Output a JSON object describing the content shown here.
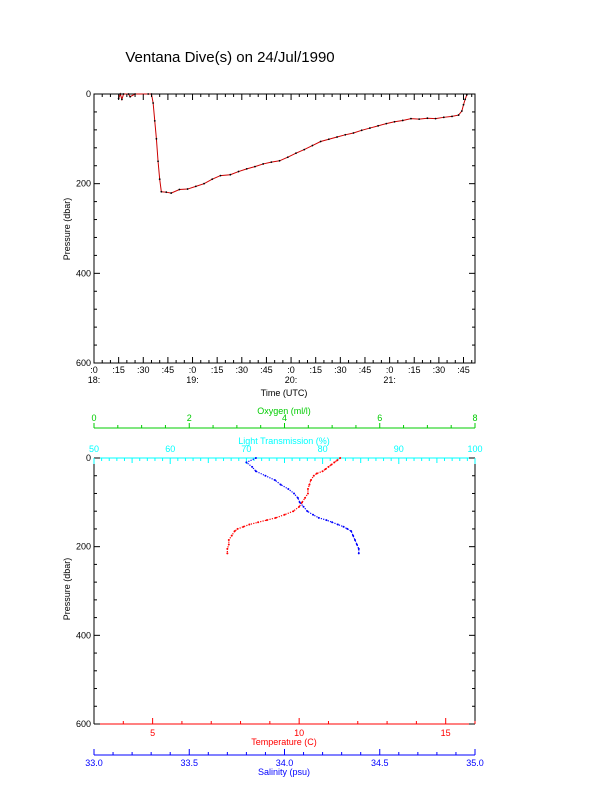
{
  "title": "Ventana Dive(s) on 24/Jul/1990",
  "colors": {
    "axis": "#000000",
    "trace": "#cc0000",
    "trace_dots": "#000000",
    "temperature": "#ff0000",
    "salinity": "#0000ff",
    "oxygen": "#00cc00",
    "light": "#00ffff"
  },
  "chart_data": [
    {
      "type": "line",
      "name": "pressure-vs-time",
      "xlabel": "Time (UTC)",
      "ylabel": "Pressure (dbar)",
      "ylim": [
        600,
        0
      ],
      "y_ticks": [
        "0",
        "200",
        "400",
        "600"
      ],
      "x_ticks": [
        {
          "t": 0,
          "label": ":0",
          "hour": "18:"
        },
        {
          "t": 15,
          "label": ":15"
        },
        {
          "t": 30,
          "label": ":30"
        },
        {
          "t": 45,
          "label": ":45"
        },
        {
          "t": 60,
          "label": ":0",
          "hour": "19:"
        },
        {
          "t": 75,
          "label": ":15"
        },
        {
          "t": 90,
          "label": ":30"
        },
        {
          "t": 105,
          "label": ":45"
        },
        {
          "t": 120,
          "label": ":0",
          "hour": "20:"
        },
        {
          "t": 135,
          "label": ":15"
        },
        {
          "t": 150,
          "label": ":30"
        },
        {
          "t": 165,
          "label": ":45"
        },
        {
          "t": 180,
          "label": ":0",
          "hour": "21:"
        },
        {
          "t": 195,
          "label": ":15"
        },
        {
          "t": 210,
          "label": ":30"
        },
        {
          "t": 225,
          "label": ":45"
        }
      ],
      "xlim": [
        0,
        232
      ],
      "points": [
        [
          15,
          10
        ],
        [
          16,
          0
        ],
        [
          17,
          12
        ],
        [
          18,
          0
        ],
        [
          21,
          0
        ],
        [
          22,
          6
        ],
        [
          25,
          0
        ],
        [
          33,
          0
        ],
        [
          35,
          0
        ],
        [
          36,
          20
        ],
        [
          37,
          60
        ],
        [
          38,
          100
        ],
        [
          39,
          150
        ],
        [
          40,
          190
        ],
        [
          41,
          218
        ],
        [
          44,
          219
        ],
        [
          47,
          221
        ],
        [
          52,
          213
        ],
        [
          57,
          212
        ],
        [
          62,
          206
        ],
        [
          67,
          200
        ],
        [
          72,
          190
        ],
        [
          77,
          182
        ],
        [
          83,
          180
        ],
        [
          88,
          173
        ],
        [
          93,
          167
        ],
        [
          98,
          162
        ],
        [
          103,
          156
        ],
        [
          108,
          152
        ],
        [
          113,
          149
        ],
        [
          118,
          141
        ],
        [
          123,
          132
        ],
        [
          128,
          124
        ],
        [
          133,
          115
        ],
        [
          138,
          106
        ],
        [
          143,
          101
        ],
        [
          148,
          96
        ],
        [
          153,
          91
        ],
        [
          158,
          87
        ],
        [
          163,
          81
        ],
        [
          168,
          76
        ],
        [
          173,
          71
        ],
        [
          178,
          66
        ],
        [
          183,
          62
        ],
        [
          188,
          59
        ],
        [
          193,
          55
        ],
        [
          198,
          56
        ],
        [
          203,
          54
        ],
        [
          208,
          55
        ],
        [
          213,
          52
        ],
        [
          218,
          50
        ],
        [
          222,
          47
        ],
        [
          224,
          38
        ],
        [
          225,
          24
        ],
        [
          226,
          12
        ],
        [
          227,
          2
        ]
      ]
    },
    {
      "type": "scatter",
      "name": "profiles",
      "ylabel": "Pressure (dbar)",
      "ylim": [
        600,
        0
      ],
      "y_ticks": [
        "0",
        "200",
        "400",
        "600"
      ],
      "axes": {
        "oxygen": {
          "label": "Oxygen (ml/l)",
          "min": 0,
          "max": 8,
          "ticks": [
            "0",
            "2",
            "4",
            "6",
            "8"
          ]
        },
        "light": {
          "label": "Light Transmission (%)",
          "min": 50,
          "max": 100,
          "ticks": [
            "50",
            "60",
            "70",
            "80",
            "90",
            "100"
          ]
        },
        "temperature": {
          "label": "Temperature (C)",
          "min": 3,
          "max": 16,
          "ticks": [
            "5",
            "10",
            "15"
          ],
          "tick_values": [
            5,
            10,
            15
          ]
        },
        "salinity": {
          "label": "Salinity (psu)",
          "min": 33.0,
          "max": 35.0,
          "ticks": [
            "33.0",
            "33.5",
            "34.0",
            "34.5",
            "35.0"
          ]
        }
      },
      "series": [
        {
          "name": "Temperature (C)",
          "axis": "temperature",
          "points": [
            [
              11.4,
              0
            ],
            [
              11.3,
              5
            ],
            [
              11.2,
              10
            ],
            [
              11.1,
              15
            ],
            [
              11.0,
              20
            ],
            [
              10.9,
              25
            ],
            [
              10.8,
              30
            ],
            [
              10.6,
              35
            ],
            [
              10.5,
              40
            ],
            [
              10.4,
              50
            ],
            [
              10.35,
              60
            ],
            [
              10.3,
              70
            ],
            [
              10.3,
              80
            ],
            [
              10.2,
              90
            ],
            [
              10.1,
              100
            ],
            [
              10.0,
              110
            ],
            [
              9.8,
              120
            ],
            [
              9.5,
              128
            ],
            [
              9.2,
              135
            ],
            [
              8.9,
              140
            ],
            [
              8.6,
              145
            ],
            [
              8.3,
              150
            ],
            [
              8.1,
              155
            ],
            [
              7.9,
              160
            ],
            [
              7.8,
              165
            ],
            [
              7.7,
              175
            ],
            [
              7.6,
              185
            ],
            [
              7.6,
              195
            ],
            [
              7.55,
              205
            ],
            [
              7.55,
              215
            ]
          ]
        },
        {
          "name": "Salinity (psu)",
          "axis": "salinity",
          "points": [
            [
              33.85,
              0
            ],
            [
              33.8,
              10
            ],
            [
              33.83,
              20
            ],
            [
              33.85,
              30
            ],
            [
              33.9,
              40
            ],
            [
              33.95,
              50
            ],
            [
              33.98,
              60
            ],
            [
              34.02,
              70
            ],
            [
              34.05,
              80
            ],
            [
              34.07,
              90
            ],
            [
              34.08,
              100
            ],
            [
              34.1,
              110
            ],
            [
              34.12,
              120
            ],
            [
              34.15,
              128
            ],
            [
              34.18,
              135
            ],
            [
              34.22,
              140
            ],
            [
              34.25,
              145
            ],
            [
              34.28,
              150
            ],
            [
              34.31,
              155
            ],
            [
              34.33,
              160
            ],
            [
              34.35,
              165
            ],
            [
              34.36,
              175
            ],
            [
              34.37,
              185
            ],
            [
              34.38,
              195
            ],
            [
              34.39,
              205
            ],
            [
              34.39,
              215
            ]
          ]
        }
      ]
    }
  ]
}
